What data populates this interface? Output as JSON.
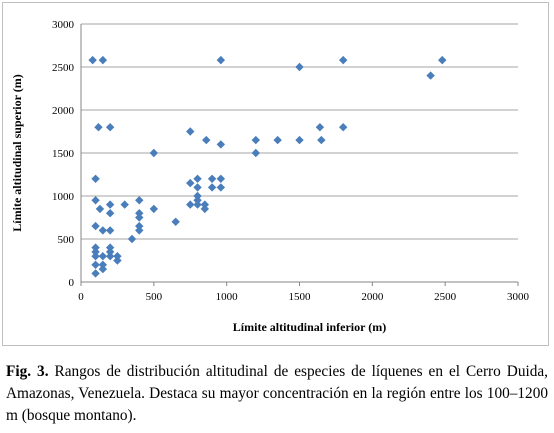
{
  "chart_data": {
    "type": "scatter",
    "xlabel": "Límite altitudinal inferior (m)",
    "ylabel": "Límite altitudinal superior (m)",
    "xlim": [
      0,
      3000
    ],
    "ylim": [
      0,
      3000
    ],
    "x_ticks": [
      "0",
      "500",
      "1000",
      "1500",
      "2000",
      "2500",
      "3000"
    ],
    "y_ticks": [
      "0",
      "500",
      "1000",
      "1500",
      "2000",
      "2500",
      "3000"
    ],
    "grid": "horizontal",
    "marker_color": "#4a7ebb",
    "marker": "diamond",
    "points": [
      [
        80,
        2580
      ],
      [
        150,
        2580
      ],
      [
        960,
        2580
      ],
      [
        1500,
        2500
      ],
      [
        1800,
        2580
      ],
      [
        2400,
        2400
      ],
      [
        2480,
        2580
      ],
      [
        120,
        1800
      ],
      [
        200,
        1800
      ],
      [
        1640,
        1800
      ],
      [
        1800,
        1800
      ],
      [
        750,
        1750
      ],
      [
        860,
        1650
      ],
      [
        1200,
        1650
      ],
      [
        1350,
        1650
      ],
      [
        1500,
        1650
      ],
      [
        1650,
        1650
      ],
      [
        960,
        1600
      ],
      [
        500,
        1500
      ],
      [
        1200,
        1500
      ],
      [
        100,
        1200
      ],
      [
        800,
        1200
      ],
      [
        900,
        1200
      ],
      [
        960,
        1200
      ],
      [
        750,
        1150
      ],
      [
        800,
        1100
      ],
      [
        900,
        1100
      ],
      [
        960,
        1100
      ],
      [
        800,
        1000
      ],
      [
        100,
        950
      ],
      [
        400,
        950
      ],
      [
        800,
        950
      ],
      [
        200,
        900
      ],
      [
        300,
        900
      ],
      [
        750,
        900
      ],
      [
        800,
        900
      ],
      [
        850,
        900
      ],
      [
        130,
        850
      ],
      [
        500,
        850
      ],
      [
        850,
        850
      ],
      [
        200,
        800
      ],
      [
        400,
        800
      ],
      [
        400,
        750
      ],
      [
        650,
        700
      ],
      [
        100,
        650
      ],
      [
        400,
        650
      ],
      [
        150,
        600
      ],
      [
        400,
        600
      ],
      [
        200,
        600
      ],
      [
        100,
        400
      ],
      [
        200,
        400
      ],
      [
        100,
        350
      ],
      [
        200,
        350
      ],
      [
        100,
        300
      ],
      [
        150,
        300
      ],
      [
        200,
        300
      ],
      [
        250,
        300
      ],
      [
        250,
        250
      ],
      [
        100,
        200
      ],
      [
        150,
        200
      ],
      [
        350,
        500
      ],
      [
        150,
        150
      ],
      [
        100,
        100
      ]
    ]
  },
  "caption": {
    "label": "Fig. 3.",
    "text": " Rangos de distribución altitudinal de especies de líquenes en el Cerro Duida, Amazonas, Venezuela. Destaca su mayor concentración en la región entre los 100–1200 m (bosque montano)."
  }
}
